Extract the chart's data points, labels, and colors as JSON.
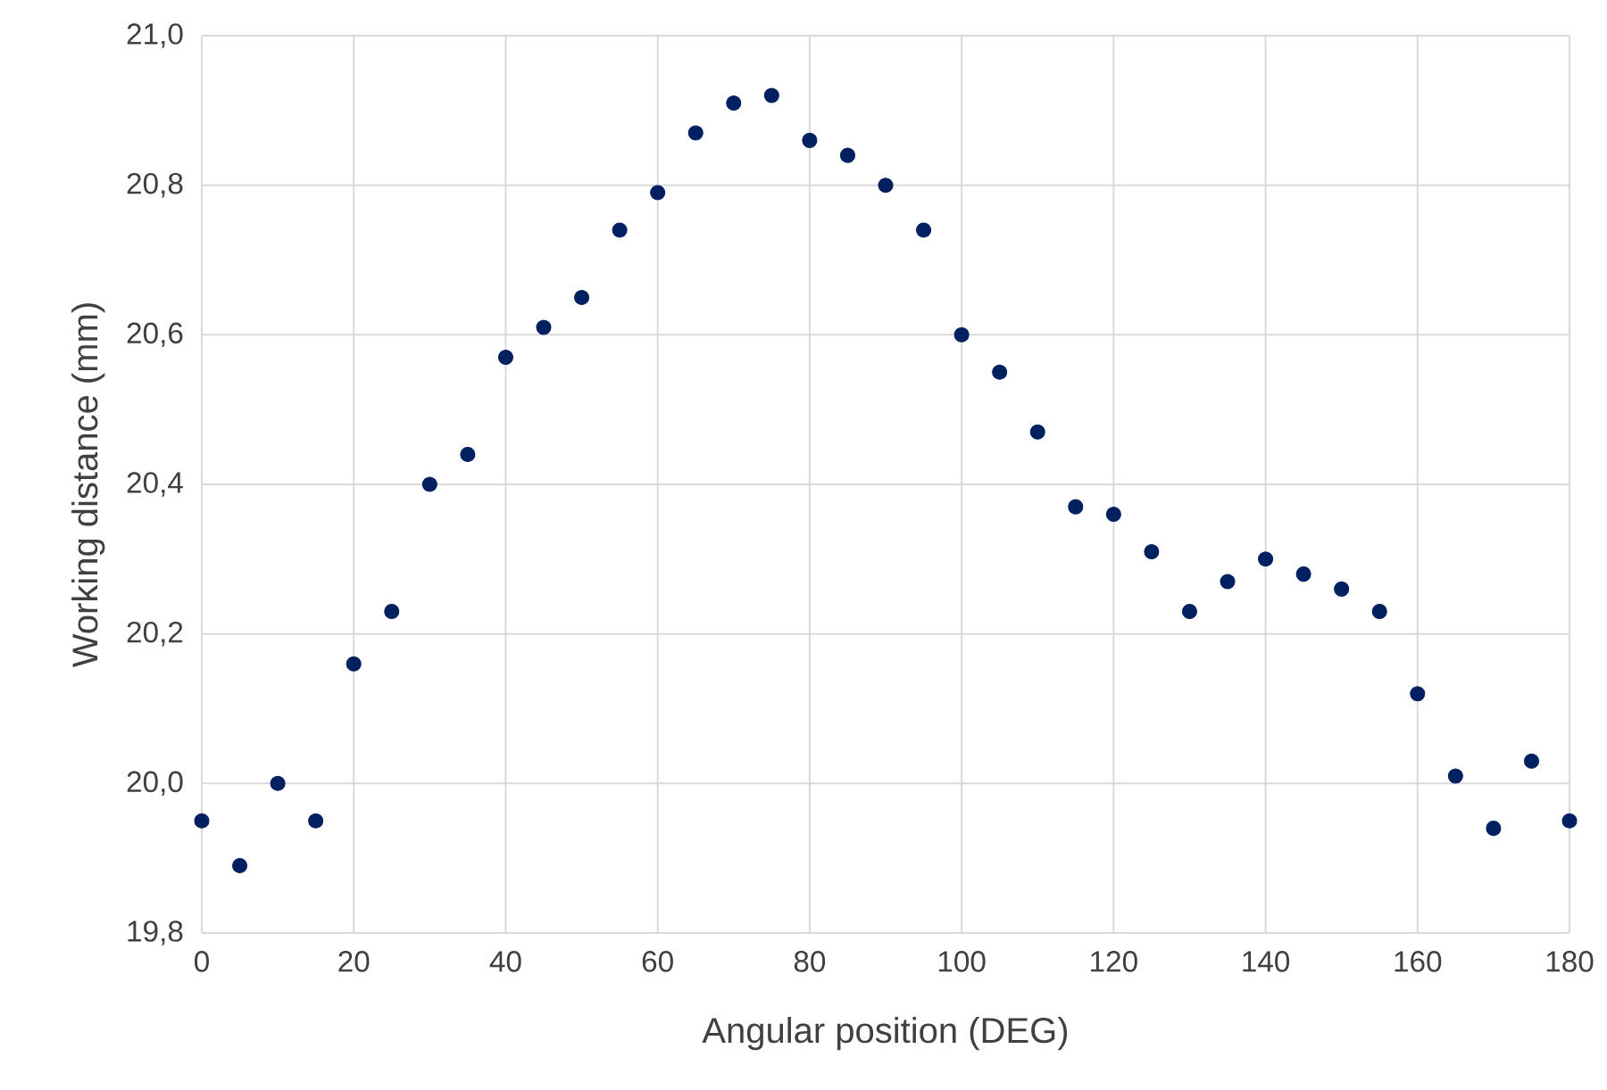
{
  "chart_data": {
    "type": "scatter",
    "xlabel": "Angular position (DEG)",
    "ylabel": "Working distance (mm)",
    "x": [
      0,
      5,
      10,
      15,
      20,
      25,
      30,
      35,
      40,
      45,
      50,
      55,
      60,
      65,
      70,
      75,
      80,
      85,
      90,
      95,
      100,
      105,
      110,
      115,
      120,
      125,
      130,
      135,
      140,
      145,
      150,
      155,
      160,
      165,
      170,
      175,
      180
    ],
    "values": [
      19.95,
      19.89,
      20.0,
      19.95,
      20.16,
      20.23,
      20.4,
      20.44,
      20.57,
      20.61,
      20.65,
      20.74,
      20.79,
      20.87,
      20.91,
      20.92,
      20.86,
      20.84,
      20.8,
      20.74,
      20.6,
      20.55,
      20.47,
      20.37,
      20.36,
      20.31,
      20.23,
      20.27,
      20.3,
      20.28,
      20.26,
      20.23,
      20.12,
      20.01,
      19.94,
      20.03,
      19.95
    ],
    "color": "#002060",
    "marker": "circle",
    "grid": true,
    "xlim": [
      0,
      180
    ],
    "ylim": [
      19.8,
      21.0
    ],
    "xticks": [
      0,
      20,
      40,
      60,
      80,
      100,
      120,
      140,
      160,
      180
    ],
    "yticks": [
      {
        "value": 19.8,
        "label": "19,8"
      },
      {
        "value": 20.0,
        "label": "20,0"
      },
      {
        "value": 20.2,
        "label": "20,2"
      },
      {
        "value": 20.4,
        "label": "20,4"
      },
      {
        "value": 20.6,
        "label": "20,6"
      },
      {
        "value": 20.8,
        "label": "20,8"
      },
      {
        "value": 21.0,
        "label": "21,0"
      }
    ]
  }
}
